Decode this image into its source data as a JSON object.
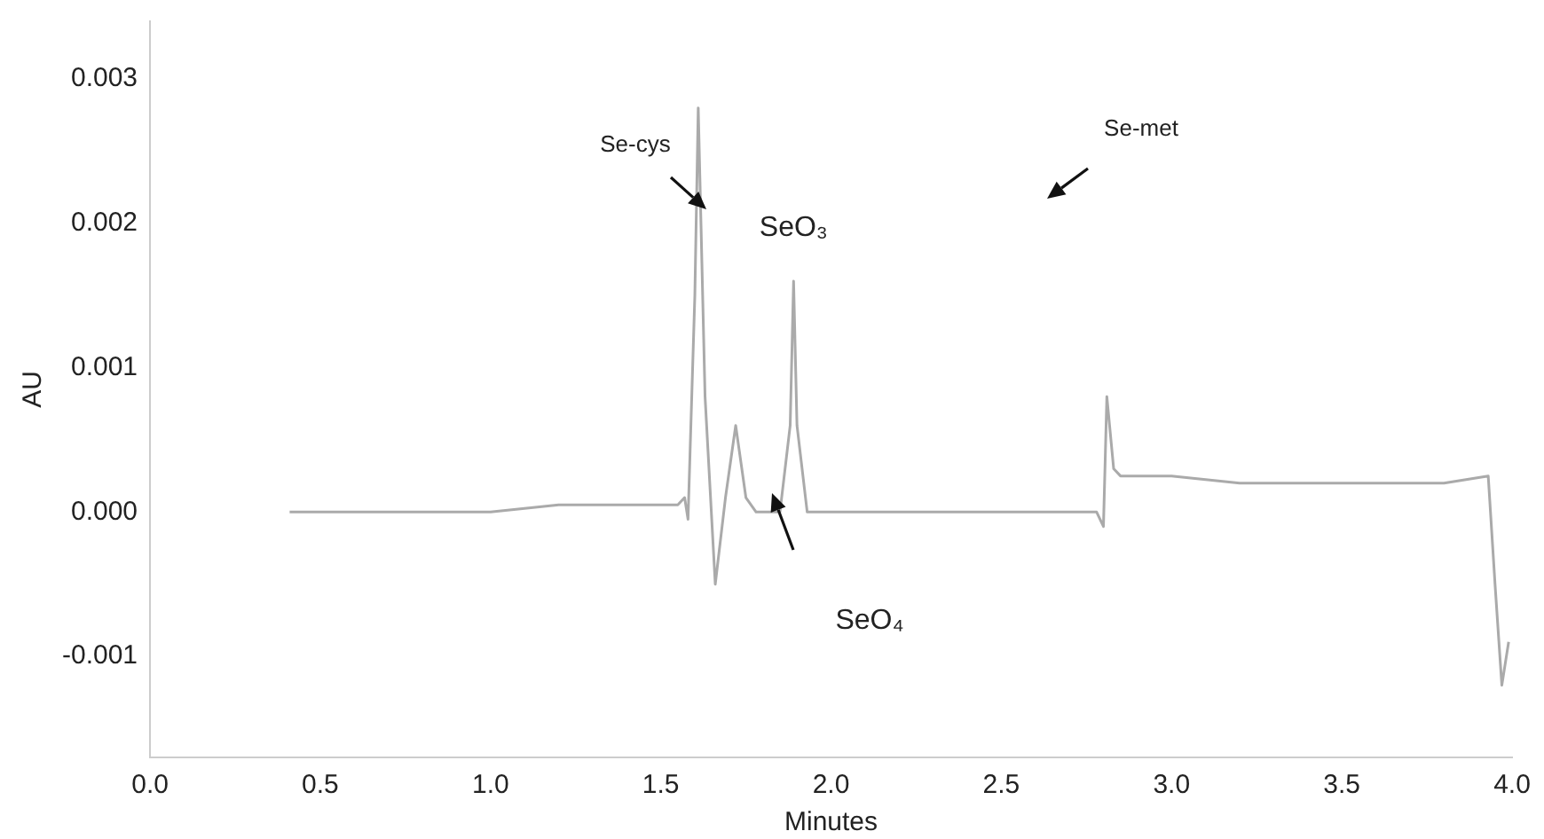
{
  "chart_data": {
    "type": "line",
    "xlabel": "Minutes",
    "ylabel": "AU",
    "x": [
      0.41,
      0.6,
      0.8,
      1.0,
      1.2,
      1.4,
      1.55,
      1.57,
      1.58,
      1.6,
      1.61,
      1.63,
      1.66,
      1.69,
      1.72,
      1.75,
      1.78,
      1.85,
      1.88,
      1.89,
      1.9,
      1.93,
      2.1,
      2.3,
      2.5,
      2.7,
      2.78,
      2.8,
      2.81,
      2.83,
      2.85,
      3.0,
      3.2,
      3.4,
      3.6,
      3.8,
      3.93,
      3.95,
      3.97,
      3.99
    ],
    "series": [
      {
        "color": "#aaaaaa",
        "values": [
          0,
          0,
          0,
          0,
          5e-05,
          5e-05,
          5e-05,
          0.0001,
          -5e-05,
          0.0015,
          0.0028,
          0.0008,
          -0.0005,
          0.0001,
          0.0006,
          0.0001,
          0,
          0,
          0.0006,
          0.0016,
          0.0006,
          0,
          0,
          0,
          0,
          0,
          0,
          -0.0001,
          0.0008,
          0.0003,
          0.00025,
          0.00025,
          0.0002,
          0.0002,
          0.0002,
          0.0002,
          0.00025,
          -0.0005,
          -0.0012,
          -0.0009
        ]
      }
    ],
    "xlim": [
      0,
      4
    ],
    "xticks": [
      {
        "value": 0,
        "label": "0.0"
      },
      {
        "value": 0.5,
        "label": "0.5"
      },
      {
        "value": 1,
        "label": "1.0"
      },
      {
        "value": 1.5,
        "label": "1.5"
      },
      {
        "value": 2,
        "label": "2.0"
      },
      {
        "value": 2.5,
        "label": "2.5"
      },
      {
        "value": 3,
        "label": "3.0"
      },
      {
        "value": 3.5,
        "label": "3.5"
      },
      {
        "value": 4,
        "label": "4.0"
      }
    ],
    "ylim": [
      -0.0017,
      0.0034
    ],
    "yticks": [
      {
        "value": -0.001,
        "label": "-0.001"
      },
      {
        "value": 0,
        "label": "0.000"
      },
      {
        "value": 0.001,
        "label": "0.001"
      },
      {
        "value": 0.002,
        "label": "0.002"
      },
      {
        "value": 0.003,
        "label": "0.003"
      }
    ],
    "annotations": [
      "Se-cys",
      {
        "text": "SeO₃",
        "x": 1.89,
        "y": 0.0016
      },
      "SeO₄",
      "Se-met"
    ],
    "grid": false,
    "legend": false,
    "marker": "none",
    "line_style": "solid"
  }
}
